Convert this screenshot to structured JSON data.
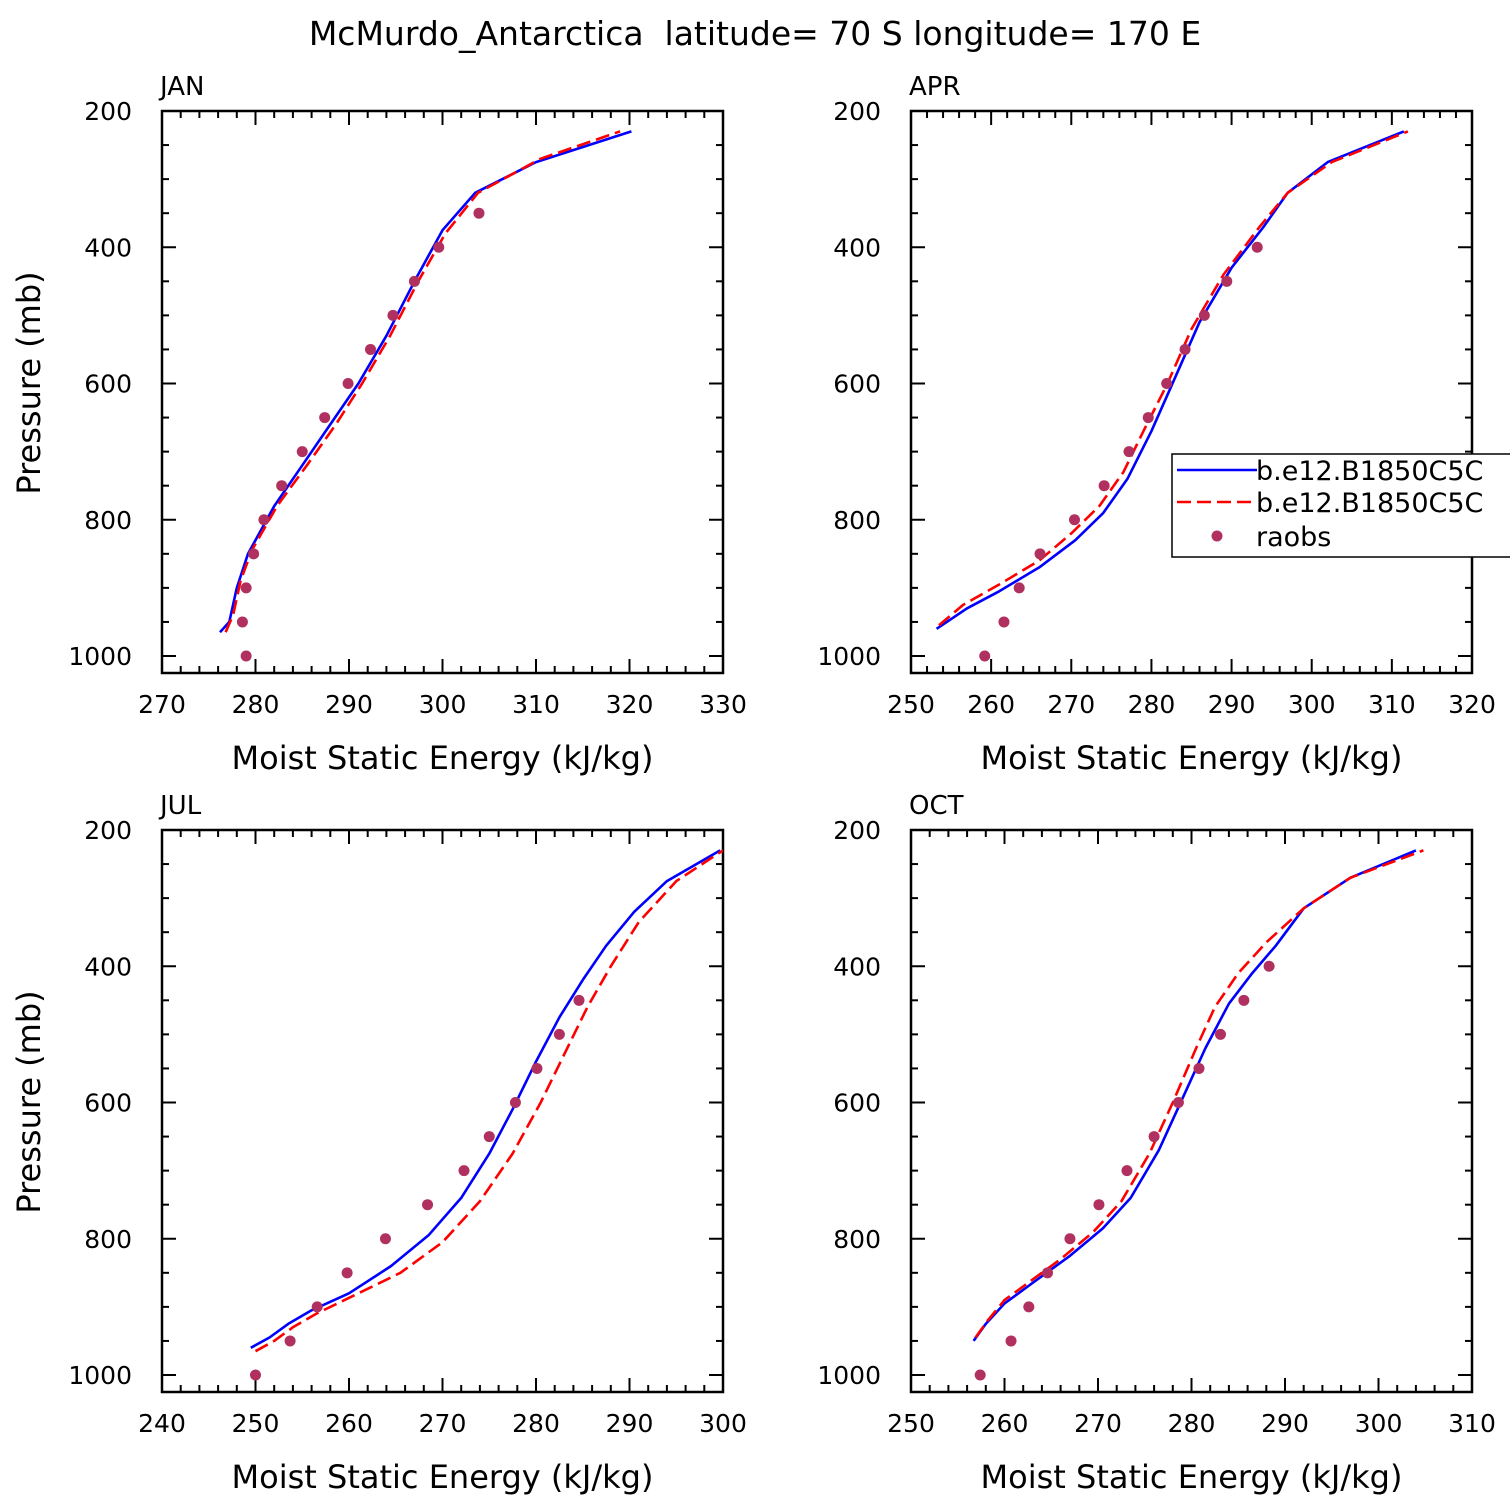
{
  "page_title": "McMurdo_Antarctica  latitude= 70 S longitude= 170 E",
  "colors": {
    "series1": "#0000ff",
    "series2": "#ff0000",
    "raobs": "#b03060",
    "axis": "#000000"
  },
  "legend": {
    "placement": "right of APR panel",
    "entries": [
      "b.e12.B1850C5C",
      "b.e12.B1850C5C",
      "raobs"
    ]
  },
  "chart_data": [
    {
      "type": "line",
      "panel": "JAN",
      "title": "JAN",
      "xlabel": "Moist Static Energy (kJ/kg)",
      "ylabel": "Pressure (mb)",
      "xlim": [
        270,
        330
      ],
      "ylim": [
        1000,
        200
      ],
      "y_reversed": true,
      "xticks": [
        270,
        280,
        290,
        300,
        310,
        320,
        330
      ],
      "yticks": [
        200,
        400,
        600,
        800,
        1000
      ],
      "series": [
        {
          "style": "solid",
          "color": "#0000ff",
          "x": [
            276.2,
            277.2,
            278.0,
            279.2,
            282.0,
            285.0,
            288.0,
            291.0,
            294.0,
            297.0,
            300.0,
            303.5,
            310.0,
            320.2
          ],
          "y": [
            965,
            950,
            900,
            850,
            780,
            720,
            660,
            600,
            530,
            450,
            375,
            320,
            275,
            230
          ]
        },
        {
          "style": "dashed",
          "color": "#ff0000",
          "x": [
            276.8,
            277.6,
            278.4,
            279.6,
            282.3,
            285.5,
            288.6,
            291.4,
            294.4,
            297.4,
            300.3,
            303.8,
            310.5,
            319.0
          ],
          "y": [
            965,
            940,
            890,
            845,
            780,
            720,
            660,
            600,
            530,
            450,
            380,
            320,
            270,
            230
          ]
        },
        {
          "style": "markers",
          "color": "#b03060",
          "name": "raobs",
          "x": [
            279.0,
            278.6,
            279.0,
            279.8,
            280.9,
            282.8,
            285.0,
            287.4,
            289.9,
            292.3,
            294.7,
            297.0,
            299.6,
            303.9
          ],
          "y": [
            1000,
            950,
            900,
            850,
            800,
            750,
            700,
            650,
            600,
            550,
            500,
            450,
            400,
            350
          ]
        }
      ]
    },
    {
      "type": "line",
      "panel": "APR",
      "title": "APR",
      "xlabel": "Moist Static Energy (kJ/kg)",
      "ylabel": "Pressure (mb)",
      "xlim": [
        250,
        320
      ],
      "ylim": [
        1000,
        200
      ],
      "y_reversed": true,
      "xticks": [
        250,
        260,
        270,
        280,
        290,
        300,
        310,
        320
      ],
      "yticks": [
        200,
        400,
        600,
        800,
        1000
      ],
      "series": [
        {
          "style": "solid",
          "color": "#0000ff",
          "x": [
            253.2,
            257.0,
            261.0,
            266.0,
            270.5,
            274.0,
            277.0,
            280.0,
            283.0,
            286.0,
            290.0,
            294.0,
            297.0,
            302.0,
            311.5
          ],
          "y": [
            960,
            930,
            905,
            870,
            830,
            790,
            740,
            670,
            590,
            510,
            430,
            370,
            320,
            275,
            230
          ]
        },
        {
          "style": "dashed",
          "color": "#ff0000",
          "x": [
            253.5,
            256.5,
            261.0,
            266.0,
            270.0,
            273.5,
            276.5,
            279.0,
            282.0,
            285.0,
            289.0,
            293.5,
            297.0,
            302.5,
            312.0
          ],
          "y": [
            955,
            925,
            895,
            860,
            820,
            780,
            730,
            670,
            600,
            520,
            440,
            370,
            320,
            275,
            230
          ]
        },
        {
          "style": "markers",
          "color": "#b03060",
          "name": "raobs",
          "x": [
            259.2,
            261.6,
            263.5,
            266.1,
            270.4,
            274.1,
            277.2,
            279.6,
            281.9,
            284.2,
            286.6,
            289.4,
            293.2
          ],
          "y": [
            1000,
            950,
            900,
            850,
            800,
            750,
            700,
            650,
            600,
            550,
            500,
            450,
            400
          ]
        }
      ]
    },
    {
      "type": "line",
      "panel": "JUL",
      "title": "JUL",
      "xlabel": "Moist Static Energy (kJ/kg)",
      "ylabel": "Pressure (mb)",
      "xlim": [
        240,
        300
      ],
      "ylim": [
        1000,
        200
      ],
      "y_reversed": true,
      "xticks": [
        240,
        250,
        260,
        270,
        280,
        290,
        300
      ],
      "yticks": [
        200,
        400,
        600,
        800,
        1000
      ],
      "series": [
        {
          "style": "solid",
          "color": "#0000ff",
          "x": [
            249.5,
            251.5,
            253.5,
            256.0,
            260.0,
            264.5,
            268.5,
            272.0,
            275.0,
            277.5,
            280.0,
            282.5,
            285.0,
            287.5,
            290.5,
            294.0,
            299.7
          ],
          "y": [
            960,
            945,
            925,
            905,
            880,
            840,
            795,
            740,
            675,
            610,
            540,
            475,
            420,
            370,
            320,
            275,
            230
          ]
        },
        {
          "style": "dashed",
          "color": "#ff0000",
          "x": [
            250.0,
            252.0,
            254.0,
            256.5,
            261.0,
            265.5,
            270.0,
            274.0,
            277.5,
            280.5,
            283.0,
            285.5,
            288.0,
            291.0,
            295.0,
            300.0
          ],
          "y": [
            965,
            950,
            930,
            910,
            880,
            850,
            805,
            745,
            675,
            600,
            530,
            460,
            400,
            335,
            275,
            230
          ]
        },
        {
          "style": "markers",
          "color": "#b03060",
          "name": "raobs",
          "x": [
            250.0,
            253.7,
            256.6,
            259.8,
            263.9,
            268.4,
            272.3,
            275.0,
            277.8,
            280.1,
            282.5,
            284.6
          ],
          "y": [
            1000,
            950,
            900,
            850,
            800,
            750,
            700,
            650,
            600,
            550,
            500,
            450
          ]
        }
      ]
    },
    {
      "type": "line",
      "panel": "OCT",
      "title": "OCT",
      "xlabel": "Moist Static Energy (kJ/kg)",
      "ylabel": "Pressure (mb)",
      "xlim": [
        250,
        310
      ],
      "ylim": [
        1000,
        200
      ],
      "y_reversed": true,
      "xticks": [
        250,
        260,
        270,
        280,
        290,
        300,
        310
      ],
      "yticks": [
        200,
        400,
        600,
        800,
        1000
      ],
      "series": [
        {
          "style": "solid",
          "color": "#0000ff",
          "x": [
            256.7,
            258.0,
            260.0,
            263.0,
            267.0,
            270.5,
            273.5,
            276.5,
            279.0,
            281.5,
            284.0,
            286.5,
            289.0,
            292.0,
            297.0,
            304.0
          ],
          "y": [
            950,
            925,
            895,
            865,
            825,
            785,
            740,
            670,
            595,
            520,
            455,
            410,
            370,
            315,
            270,
            230
          ]
        },
        {
          "style": "dashed",
          "color": "#ff0000",
          "x": [
            256.9,
            258.2,
            260.0,
            262.5,
            266.0,
            269.5,
            272.5,
            275.5,
            278.0,
            280.5,
            282.5,
            285.0,
            288.0,
            292.0,
            297.0,
            304.8
          ],
          "y": [
            945,
            920,
            890,
            865,
            830,
            790,
            745,
            675,
            600,
            520,
            460,
            410,
            365,
            315,
            270,
            230
          ]
        },
        {
          "style": "markers",
          "color": "#b03060",
          "name": "raobs",
          "x": [
            257.4,
            260.7,
            262.6,
            264.6,
            267.0,
            270.1,
            273.1,
            276.0,
            278.6,
            280.8,
            283.1,
            285.6,
            288.3
          ],
          "y": [
            1000,
            950,
            900,
            850,
            800,
            750,
            700,
            650,
            600,
            550,
            500,
            450,
            400
          ]
        }
      ]
    }
  ]
}
